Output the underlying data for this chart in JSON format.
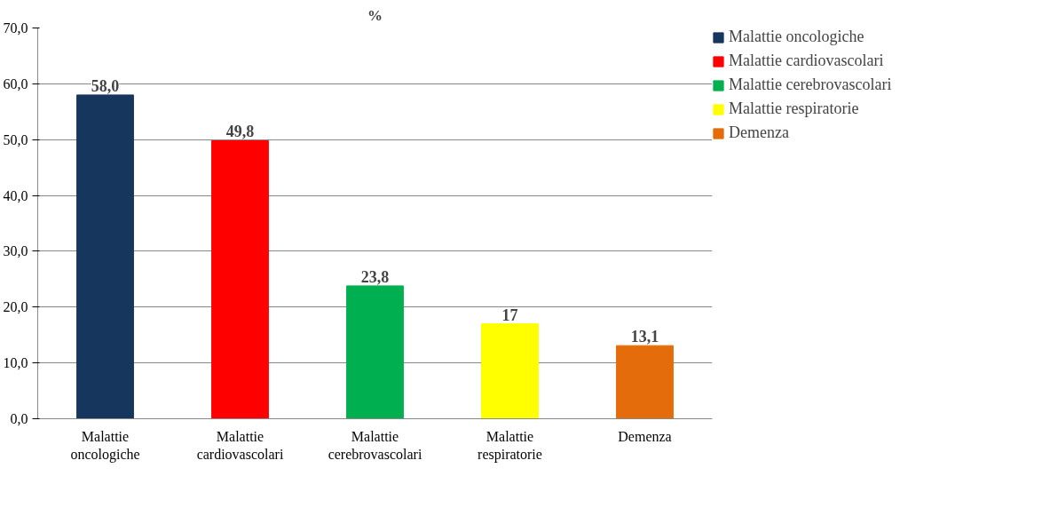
{
  "chart_data": {
    "type": "bar",
    "title": "%",
    "stacked": true,
    "categories": [
      "Malattie oncologiche",
      "Malattie cardiovascolari",
      "Malattie cerebrovascolari",
      "Malattie respiratorie",
      "Demenza"
    ],
    "series": [
      {
        "name": "Malattie oncologiche",
        "color": "#17365d",
        "values": [
          58.0,
          null,
          null,
          null,
          null
        ],
        "value_labels": [
          "58,0",
          null,
          null,
          null,
          null
        ]
      },
      {
        "name": "Malattie cardiovascolari",
        "color": "#ff0000",
        "values": [
          null,
          49.8,
          null,
          null,
          null
        ],
        "value_labels": [
          null,
          "49,8",
          null,
          null,
          null
        ]
      },
      {
        "name": "Malattie cerebrovascolari",
        "color": "#00b050",
        "values": [
          null,
          null,
          23.8,
          null,
          null
        ],
        "value_labels": [
          null,
          null,
          "23,8",
          null,
          null
        ]
      },
      {
        "name": "Malattie respiratorie",
        "color": "#ffff00",
        "values": [
          null,
          null,
          null,
          17,
          null
        ],
        "value_labels": [
          null,
          null,
          null,
          "17",
          null
        ]
      },
      {
        "name": "Demenza",
        "color": "#e46c0a",
        "values": [
          null,
          null,
          null,
          null,
          13.1
        ],
        "value_labels": [
          null,
          null,
          null,
          null,
          "13,1"
        ]
      }
    ],
    "ylim": [
      0,
      70
    ],
    "yticks": [
      {
        "value": 0,
        "label": "0,0"
      },
      {
        "value": 10,
        "label": "10,0"
      },
      {
        "value": 20,
        "label": "20,0"
      },
      {
        "value": 30,
        "label": "30,0"
      },
      {
        "value": 40,
        "label": "40,0"
      },
      {
        "value": 50,
        "label": "50,0"
      },
      {
        "value": 60,
        "label": "60,0"
      },
      {
        "value": 70,
        "label": "70,0"
      }
    ],
    "grid": "y",
    "legend": "right"
  }
}
